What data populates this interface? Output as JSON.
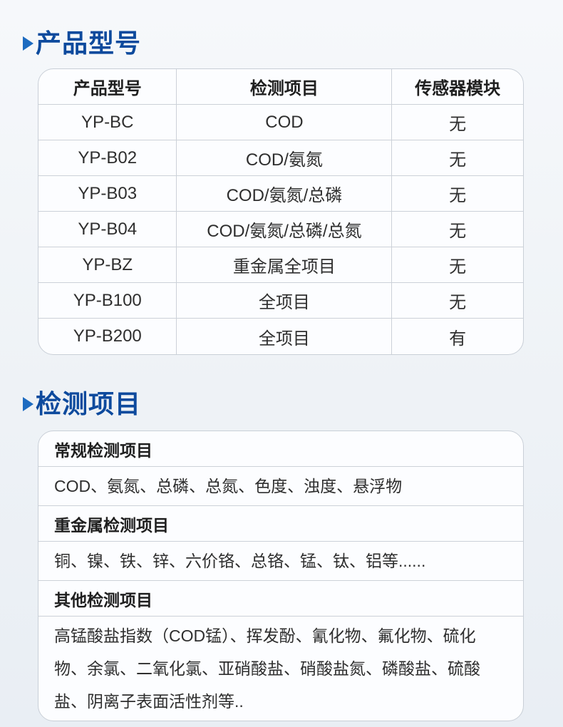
{
  "colors": {
    "heading_navy": "#0d4a9d",
    "triangle_blue": "#1d6bc0",
    "table_border": "#ccd1d8",
    "cell_bg": "#fcfdff",
    "page_bg_top": "#f6f8fb",
    "page_bg_bottom": "#e9eef4",
    "body_text": "#2e2e2e"
  },
  "product_section": {
    "heading": "产品型号",
    "table": {
      "headers": [
        "产品型号",
        "检测项目",
        "传感器模块"
      ],
      "rows": [
        [
          "YP-BC",
          "COD",
          "无"
        ],
        [
          "YP-B02",
          "COD/氨氮",
          "无"
        ],
        [
          "YP-B03",
          "COD/氨氮/总磷",
          "无"
        ],
        [
          "YP-B04",
          "COD/氨氮/总磷/总氮",
          "无"
        ],
        [
          "YP-BZ",
          "重金属全项目",
          "无"
        ],
        [
          "YP-B100",
          "全项目",
          "无"
        ],
        [
          "YP-B200",
          "全项目",
          "有"
        ]
      ]
    }
  },
  "detection_section": {
    "heading": "检测项目",
    "groups": [
      {
        "label": "常规检测项目",
        "items": "COD、氨氮、总磷、总氮、色度、浊度、悬浮物"
      },
      {
        "label": "重金属检测项目",
        "items": "铜、镍、铁、锌、六价铬、总铬、锰、钛、铝等......"
      },
      {
        "label": "其他检测项目",
        "items": "高锰酸盐指数（COD锰）、挥发酚、氰化物、氟化物、硫化物、余氯、二氧化氯、亚硝酸盐、硝酸盐氮、磷酸盐、硫酸盐、阴离子表面活性剂等.."
      }
    ]
  }
}
